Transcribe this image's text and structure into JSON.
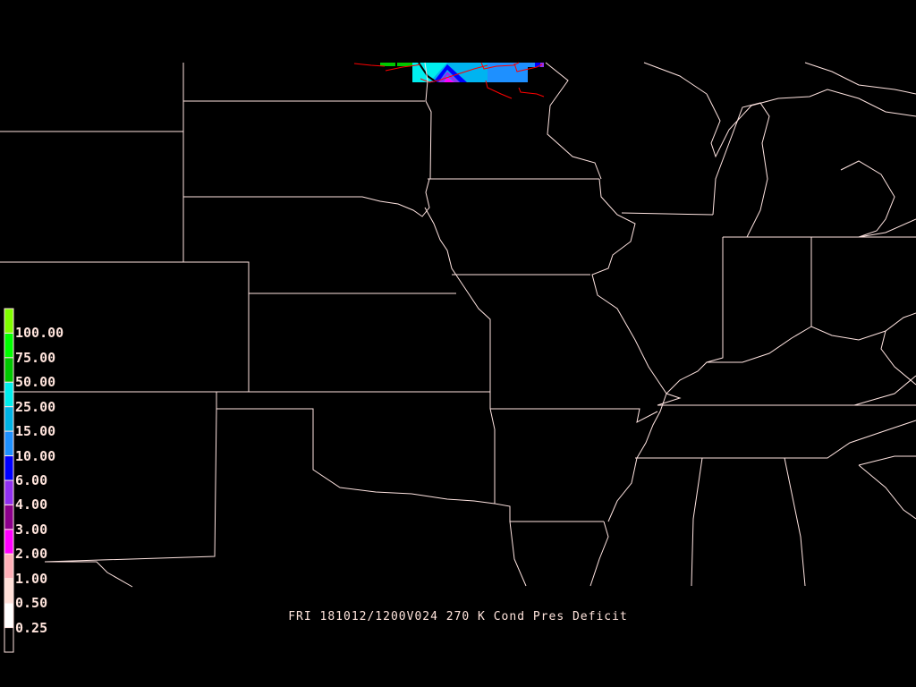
{
  "title": "FRI 181012/1200V024 270 K Cond Pres Deficit",
  "map_line_color": "#ffe4e1",
  "legend": {
    "labels": [
      "100.00",
      "75.00",
      "50.00",
      "25.00",
      "15.00",
      "10.00",
      "6.00",
      "4.00",
      "3.00",
      "2.00",
      "1.00",
      "0.50",
      "0.25"
    ],
    "colors": [
      "#80ff00",
      "#00ff00",
      "#00c800",
      "#00eeee",
      "#00b4e6",
      "#1e90ff",
      "#0000ff",
      "#9030f0",
      "#8b008b",
      "#ff00ff",
      "#ffb0b8",
      "#ffe0d8",
      "#ffffff",
      "#000000"
    ]
  }
}
